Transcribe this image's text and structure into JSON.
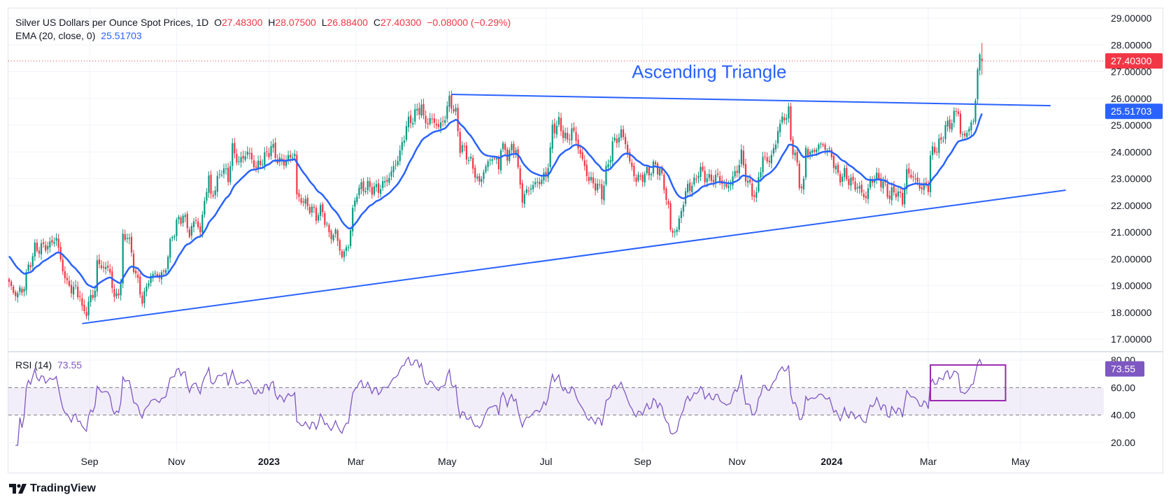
{
  "legend": {
    "title": "Silver US Dollars per Ounce Spot Prices, 1D",
    "o_label": "O",
    "o_value": "27.48300",
    "h_label": "H",
    "h_value": "28.07500",
    "l_label": "L",
    "l_value": "26.88400",
    "c_label": "C",
    "c_value": "27.40300",
    "change": "−0.08000 (−0.29%)",
    "ema_label": "EMA (20, close, 0)",
    "ema_value": "25.51703",
    "rsi_label": "RSI (14)",
    "rsi_value": "73.55"
  },
  "branding": {
    "name": "TradingView"
  },
  "colors": {
    "up": "#089981",
    "down": "#f23645",
    "ema": "#2962ff",
    "trendline": "#2962ff",
    "rsi": "#7e57c2",
    "rsi_box": "#9c27b0",
    "grid": "#f0f3fa",
    "text": "#131722"
  },
  "chart_data": {
    "type": "candlestick",
    "title": "Silver US Dollars per Ounce Spot Prices, 1D",
    "x_unit": "bar index (daily)",
    "x_ticks": [
      {
        "label": "Sep",
        "bar": 37.5,
        "bold": false
      },
      {
        "label": "Nov",
        "bar": 78,
        "bold": false
      },
      {
        "label": "2023",
        "bar": 121,
        "bold": true
      },
      {
        "label": "Mar",
        "bar": 161.5,
        "bold": false
      },
      {
        "label": "May",
        "bar": 204,
        "bold": false
      },
      {
        "label": "Jul",
        "bar": 250,
        "bold": false
      },
      {
        "label": "Sep",
        "bar": 295,
        "bold": false
      },
      {
        "label": "Nov",
        "bar": 339,
        "bold": false
      },
      {
        "label": "2024",
        "bar": 383,
        "bold": true
      },
      {
        "label": "Mar",
        "bar": 428,
        "bold": false
      },
      {
        "label": "May",
        "bar": 471,
        "bold": false
      }
    ],
    "price_axis": {
      "range": [
        17,
        29
      ],
      "ticks": [
        "29.00000",
        "28.00000",
        "27.00000",
        "26.00000",
        "25.00000",
        "24.00000",
        "23.00000",
        "22.00000",
        "21.00000",
        "20.00000",
        "19.00000",
        "18.00000",
        "17.00000"
      ]
    },
    "rsi_axis": {
      "range": [
        20,
        80
      ],
      "ticks": [
        {
          "v": 80,
          "label": "80.00"
        },
        {
          "v": 60,
          "label": "60.00"
        },
        {
          "v": 40,
          "label": "40.00"
        },
        {
          "v": 20,
          "label": "20.00"
        }
      ],
      "band": [
        40,
        60
      ]
    },
    "last_bar": {
      "open": 27.483,
      "high": 28.075,
      "low": 26.884,
      "close": 27.403
    },
    "last_price_label": "27.40300",
    "ema_period": 20,
    "ema_seed": 20.2,
    "ema_axis_label": "25.51703",
    "rsi_period": 14,
    "rsi_axis_label": "73.55",
    "close_path": [
      [
        0,
        19.14
      ],
      [
        2,
        18.7
      ],
      [
        6,
        18.78
      ],
      [
        10,
        19.93
      ],
      [
        12,
        20.35
      ],
      [
        19,
        20.53
      ],
      [
        22,
        20.8
      ],
      [
        24,
        19.93
      ],
      [
        27,
        19.04
      ],
      [
        33,
        18.7
      ],
      [
        34,
        17.99
      ],
      [
        36,
        18.1
      ],
      [
        40,
        18.88
      ],
      [
        41,
        19.82
      ],
      [
        47,
        19.56
      ],
      [
        49,
        18.44
      ],
      [
        52,
        19.05
      ],
      [
        53,
        20.71
      ],
      [
        55,
        20.97
      ],
      [
        58,
        19.75
      ],
      [
        62,
        18.44
      ],
      [
        66,
        19.4
      ],
      [
        72,
        19.4
      ],
      [
        76,
        20.87
      ],
      [
        78,
        21.3
      ],
      [
        81,
        21.65
      ],
      [
        84,
        20.97
      ],
      [
        87,
        21.5
      ],
      [
        89,
        20.97
      ],
      [
        91,
        22.18
      ],
      [
        93,
        23.06
      ],
      [
        94,
        22.28
      ],
      [
        97,
        22.88
      ],
      [
        99,
        23.4
      ],
      [
        102,
        23.06
      ],
      [
        104,
        24.11
      ],
      [
        107,
        23.6
      ],
      [
        111,
        24.0
      ],
      [
        115,
        23.4
      ],
      [
        120,
        23.9
      ],
      [
        122,
        24.2
      ],
      [
        126,
        23.6
      ],
      [
        129,
        23.7
      ],
      [
        133,
        23.93
      ],
      [
        134,
        22.35
      ],
      [
        139,
        22.0
      ],
      [
        143,
        21.65
      ],
      [
        146,
        21.8
      ],
      [
        149,
        20.87
      ],
      [
        152,
        20.97
      ],
      [
        155,
        20.08
      ],
      [
        158,
        20.53
      ],
      [
        160,
        21.75
      ],
      [
        162,
        22.54
      ],
      [
        165,
        22.7
      ],
      [
        172,
        22.6
      ],
      [
        177,
        23.06
      ],
      [
        182,
        23.93
      ],
      [
        185,
        24.97
      ],
      [
        190,
        25.5
      ],
      [
        192,
        25.76
      ],
      [
        193,
        25.16
      ],
      [
        198,
        25.16
      ],
      [
        200,
        24.9
      ],
      [
        203,
        25.3
      ],
      [
        205,
        25.97
      ],
      [
        208,
        25.4
      ],
      [
        210,
        24.2
      ],
      [
        213,
        23.93
      ],
      [
        215,
        23.6
      ],
      [
        219,
        22.8
      ],
      [
        221,
        23.3
      ],
      [
        225,
        23.85
      ],
      [
        228,
        23.48
      ],
      [
        229,
        24.2
      ],
      [
        232,
        23.93
      ],
      [
        236,
        24.2
      ],
      [
        237,
        23.22
      ],
      [
        239,
        22.28
      ],
      [
        243,
        22.7
      ],
      [
        248,
        22.96
      ],
      [
        250,
        23.14
      ],
      [
        252,
        24.0
      ],
      [
        253,
        24.89
      ],
      [
        256,
        25.05
      ],
      [
        258,
        24.71
      ],
      [
        260,
        24.37
      ],
      [
        262,
        24.89
      ],
      [
        265,
        24.2
      ],
      [
        267,
        23.67
      ],
      [
        270,
        22.96
      ],
      [
        274,
        22.7
      ],
      [
        276,
        22.44
      ],
      [
        278,
        23.22
      ],
      [
        281,
        24.27
      ],
      [
        285,
        24.71
      ],
      [
        287,
        24.37
      ],
      [
        289,
        23.59
      ],
      [
        292,
        22.96
      ],
      [
        296,
        23.14
      ],
      [
        301,
        23.48
      ],
      [
        303,
        23.32
      ],
      [
        305,
        22.7
      ],
      [
        307,
        21.92
      ],
      [
        308,
        21.05
      ],
      [
        311,
        21.05
      ],
      [
        313,
        21.84
      ],
      [
        316,
        22.7
      ],
      [
        319,
        22.8
      ],
      [
        321,
        23.32
      ],
      [
        326,
        22.96
      ],
      [
        330,
        23.07
      ],
      [
        334,
        22.62
      ],
      [
        338,
        23.14
      ],
      [
        341,
        23.85
      ],
      [
        344,
        22.8
      ],
      [
        348,
        22.28
      ],
      [
        349,
        23.07
      ],
      [
        351,
        23.75
      ],
      [
        354,
        23.67
      ],
      [
        357,
        24.27
      ],
      [
        358,
        24.9
      ],
      [
        362,
        25.42
      ],
      [
        363,
        25.5
      ],
      [
        364,
        24.37
      ],
      [
        366,
        23.93
      ],
      [
        368,
        22.8
      ],
      [
        370,
        22.8
      ],
      [
        371,
        24.1
      ],
      [
        374,
        23.93
      ],
      [
        377,
        24.27
      ],
      [
        380,
        24.19
      ],
      [
        383,
        23.85
      ],
      [
        386,
        23.07
      ],
      [
        389,
        23.14
      ],
      [
        392,
        22.88
      ],
      [
        395,
        22.7
      ],
      [
        399,
        22.28
      ],
      [
        401,
        22.88
      ],
      [
        404,
        23.07
      ],
      [
        407,
        22.8
      ],
      [
        410,
        22.36
      ],
      [
        413,
        22.54
      ],
      [
        416,
        22.18
      ],
      [
        418,
        23.22
      ],
      [
        421,
        23.07
      ],
      [
        424,
        22.7
      ],
      [
        428,
        22.7
      ],
      [
        429,
        23.85
      ],
      [
        431,
        24.1
      ],
      [
        434,
        24.37
      ],
      [
        436,
        24.97
      ],
      [
        438,
        24.97
      ],
      [
        440,
        25.42
      ],
      [
        442,
        25.5
      ],
      [
        443,
        24.71
      ],
      [
        445,
        24.53
      ],
      [
        447,
        24.97
      ],
      [
        449,
        25.05
      ],
      [
        450,
        26.1
      ],
      [
        451,
        27.14
      ],
      [
        452,
        27.4
      ],
      [
        453,
        27.403
      ]
    ],
    "annotations": {
      "pattern_label": "Ascending Triangle",
      "pattern_label_at": {
        "bar": 290,
        "price": 27.0
      },
      "upper_trendline": [
        [
          206,
          26.15
        ],
        [
          485,
          25.73
        ]
      ],
      "lower_trendline": [
        [
          34,
          17.58
        ],
        [
          492,
          22.57
        ]
      ],
      "rsi_box": {
        "bars": [
          429,
          464
        ],
        "rsi": [
          50.5,
          76.4
        ]
      }
    }
  }
}
